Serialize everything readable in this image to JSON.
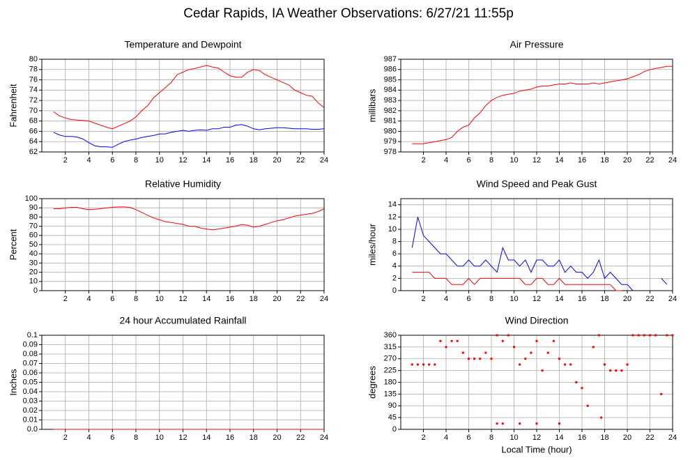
{
  "title": "Cedar Rapids, IA Weather Observations: 6/27/21 11:55p",
  "chart_data": [
    {
      "type": "line",
      "title": "Temperature and Dewpoint",
      "ylabel": "Fahrenheit",
      "x": [
        1,
        1.5,
        2,
        2.5,
        3,
        3.5,
        4,
        4.5,
        5,
        5.5,
        6,
        6.5,
        7,
        7.5,
        8,
        8.5,
        9,
        9.5,
        10,
        10.5,
        11,
        11.5,
        12,
        12.5,
        13,
        13.5,
        14,
        14.5,
        15,
        15.5,
        16,
        16.5,
        17,
        17.5,
        18,
        18.5,
        19,
        19.5,
        20,
        20.5,
        21,
        21.5,
        22,
        22.5,
        23,
        23.5,
        24
      ],
      "series": [
        {
          "color": "#ff0000",
          "values": [
            69.8,
            69,
            68.6,
            68.3,
            68.2,
            68.1,
            68,
            67.6,
            67.2,
            66.8,
            66.5,
            67,
            67.5,
            68,
            68.8,
            70,
            71,
            72.5,
            73.5,
            74.5,
            75.5,
            77,
            77.5,
            78,
            78.2,
            78.5,
            78.8,
            78.5,
            78.3,
            77.5,
            76.8,
            76.5,
            76.5,
            77.5,
            78,
            77.8,
            77,
            76.5,
            76,
            75.5,
            75,
            74,
            73.5,
            73,
            72.8,
            71.5,
            70.6
          ]
        },
        {
          "color": "#0000ff",
          "values": [
            65.8,
            65.3,
            65,
            65,
            64.9,
            64.5,
            63.8,
            63.2,
            63,
            63,
            62.9,
            63.5,
            64,
            64.3,
            64.5,
            64.8,
            65,
            65.2,
            65.5,
            65.5,
            65.8,
            66,
            66.2,
            66,
            66.2,
            66.3,
            66.2,
            66.5,
            66.5,
            66.8,
            66.8,
            67.2,
            67.3,
            67,
            66.5,
            66.3,
            66.5,
            66.6,
            66.7,
            66.7,
            66.6,
            66.5,
            66.5,
            66.5,
            66.4,
            66.4,
            66.5
          ]
        }
      ],
      "xlim": [
        0,
        24
      ],
      "xticks": [
        2,
        4,
        6,
        8,
        10,
        12,
        14,
        16,
        18,
        20,
        22,
        24
      ],
      "ylim": [
        62,
        80
      ],
      "yticks": [
        62,
        64,
        66,
        68,
        70,
        72,
        74,
        76,
        78,
        80
      ],
      "grid": true
    },
    {
      "type": "line",
      "title": "Air Pressure",
      "ylabel": "millibars",
      "x": [
        1,
        1.5,
        2,
        2.5,
        3,
        3.5,
        4,
        4.5,
        5,
        5.5,
        6,
        6.5,
        7,
        7.5,
        8,
        8.5,
        9,
        9.5,
        10,
        10.5,
        11,
        11.5,
        12,
        12.5,
        13,
        13.5,
        14,
        14.5,
        15,
        15.5,
        16,
        16.5,
        17,
        17.5,
        18,
        18.5,
        19,
        19.5,
        20,
        20.5,
        21,
        21.5,
        22,
        22.5,
        23,
        23.5,
        24
      ],
      "series": [
        {
          "color": "#ff0000",
          "values": [
            978.8,
            978.8,
            978.8,
            978.9,
            979,
            979.1,
            979.2,
            979.4,
            980,
            980.4,
            980.6,
            981.3,
            981.8,
            982.5,
            983,
            983.3,
            983.5,
            983.6,
            983.7,
            983.9,
            984,
            984.1,
            984.3,
            984.4,
            984.4,
            984.5,
            984.6,
            984.6,
            984.7,
            984.6,
            984.6,
            984.6,
            984.7,
            984.6,
            984.7,
            984.8,
            984.9,
            985,
            985.1,
            985.3,
            985.5,
            985.8,
            986,
            986.1,
            986.2,
            986.3,
            986.3
          ]
        }
      ],
      "xlim": [
        0,
        24
      ],
      "xticks": [
        2,
        4,
        6,
        8,
        10,
        12,
        14,
        16,
        18,
        20,
        22,
        24
      ],
      "ylim": [
        978,
        987
      ],
      "yticks": [
        978,
        979,
        980,
        981,
        982,
        983,
        984,
        985,
        986,
        987
      ],
      "grid": true
    },
    {
      "type": "line",
      "title": "Relative Humidity",
      "ylabel": "Percent",
      "x": [
        1,
        1.5,
        2,
        2.5,
        3,
        3.5,
        4,
        4.5,
        5,
        5.5,
        6,
        6.5,
        7,
        7.5,
        8,
        8.5,
        9,
        9.5,
        10,
        10.5,
        11,
        11.5,
        12,
        12.5,
        13,
        13.5,
        14,
        14.5,
        15,
        15.5,
        16,
        16.5,
        17,
        17.5,
        18,
        18.5,
        19,
        19.5,
        20,
        20.5,
        21,
        21.5,
        22,
        22.5,
        23,
        23.5,
        24
      ],
      "series": [
        {
          "color": "#ff0000",
          "values": [
            89,
            89,
            90,
            90.5,
            90.5,
            89,
            88,
            88.5,
            89,
            90,
            90.5,
            91,
            91,
            90.5,
            88,
            85,
            82,
            79,
            77,
            75,
            74,
            73,
            72,
            70,
            70,
            68,
            67,
            66,
            67,
            68,
            69,
            70,
            72,
            71,
            69,
            70,
            72,
            74,
            76,
            77,
            79,
            81,
            82,
            83,
            84,
            86,
            89
          ]
        }
      ],
      "xlim": [
        0,
        24
      ],
      "xticks": [
        2,
        4,
        6,
        8,
        10,
        12,
        14,
        16,
        18,
        20,
        22,
        24
      ],
      "ylim": [
        0,
        100
      ],
      "yticks": [
        0,
        10,
        20,
        30,
        40,
        50,
        60,
        70,
        80,
        90,
        100
      ],
      "grid": true
    },
    {
      "type": "line",
      "title": "Wind Speed and Peak Gust",
      "ylabel": "miles/hour",
      "x": [
        1,
        1.5,
        2,
        2.5,
        3,
        3.5,
        4,
        4.5,
        5,
        5.5,
        6,
        6.5,
        7,
        7.5,
        8,
        8.5,
        9,
        9.5,
        10,
        10.5,
        11,
        11.5,
        12,
        12.5,
        13,
        13.5,
        14,
        14.5,
        15,
        15.5,
        16,
        16.5,
        17,
        17.5,
        18,
        18.5,
        19,
        19.5,
        20,
        20.5,
        21,
        21.5,
        22,
        22.5,
        23,
        23.5,
        24
      ],
      "series": [
        {
          "color": "#0000ff",
          "values": [
            7,
            12,
            9,
            8,
            7,
            6,
            6,
            5,
            4,
            4,
            5,
            4,
            4,
            5,
            4,
            3,
            7,
            5,
            5,
            4,
            5,
            3,
            5,
            5,
            4,
            4,
            5,
            3,
            4,
            3,
            3,
            2,
            3,
            5,
            2,
            3,
            2,
            1,
            1,
            0,
            null,
            null,
            null,
            null,
            2,
            1,
            null
          ]
        },
        {
          "color": "#ff0000",
          "values": [
            3,
            3,
            3,
            3,
            2,
            2,
            2,
            1,
            1,
            1,
            2,
            1,
            2,
            2,
            2,
            2,
            2,
            2,
            2,
            2,
            1,
            1,
            2,
            2,
            1,
            1,
            2,
            1,
            1,
            1,
            1,
            1,
            1,
            1,
            1,
            1,
            0,
            0,
            null,
            null,
            null,
            null,
            null,
            null,
            null,
            null,
            null
          ]
        }
      ],
      "xlim": [
        0,
        24
      ],
      "xticks": [
        2,
        4,
        6,
        8,
        10,
        12,
        14,
        16,
        18,
        20,
        22,
        24
      ],
      "ylim": [
        0,
        15
      ],
      "yticks": [
        0,
        2,
        4,
        6,
        8,
        10,
        12,
        14
      ],
      "grid": true
    },
    {
      "type": "line",
      "title": "24 hour Accumulated Rainfall",
      "ylabel": "Inches",
      "x": [
        1,
        24
      ],
      "series": [
        {
          "color": "#ff0000",
          "values": [
            0,
            0
          ]
        }
      ],
      "xlim": [
        0,
        24
      ],
      "xticks": [
        2,
        4,
        6,
        8,
        10,
        12,
        14,
        16,
        18,
        20,
        22,
        24
      ],
      "ylim": [
        0,
        0.1
      ],
      "yticks": [
        {
          "value": 0,
          "label": "0.0"
        },
        0.01,
        0.02,
        0.03,
        0.04,
        0.05,
        0.06,
        0.07,
        0.08,
        0.09,
        0.1
      ],
      "grid": true
    },
    {
      "type": "scatter",
      "title": "Wind Direction",
      "ylabel": "degrees",
      "xlabel": "Local Time (hour)",
      "x": [
        1,
        1.5,
        2,
        2.5,
        3,
        3.5,
        4,
        4.5,
        5,
        5.5,
        6,
        6.5,
        7,
        7.5,
        8,
        8.5,
        9,
        9.5,
        10,
        10.5,
        11,
        11.5,
        12,
        12.5,
        13,
        13.5,
        14,
        14.5,
        15,
        15.5,
        16,
        16.5,
        17,
        17.5,
        18,
        18.5,
        19,
        19.5,
        20,
        20.5,
        21,
        21.5,
        22,
        22.5,
        23,
        23.5,
        24,
        8.5,
        9,
        10.5,
        12,
        14,
        17.7
      ],
      "series": [
        {
          "color": "#ff0000",
          "values": [
            248,
            248,
            248,
            248,
            248,
            338,
            315,
            338,
            338,
            293,
            270,
            270,
            270,
            293,
            270,
            360,
            338,
            360,
            315,
            248,
            270,
            293,
            338,
            225,
            293,
            338,
            270,
            248,
            248,
            180,
            158,
            90,
            315,
            360,
            248,
            225,
            225,
            225,
            248,
            360,
            360,
            360,
            360,
            360,
            135,
            360,
            360,
            22,
            22,
            22,
            22,
            22,
            45
          ]
        }
      ],
      "xlim": [
        0,
        24
      ],
      "xticks": [
        2,
        4,
        6,
        8,
        10,
        12,
        14,
        16,
        18,
        20,
        22,
        24
      ],
      "ylim": [
        0,
        360
      ],
      "yticks": [
        0,
        45,
        90,
        135,
        180,
        225,
        270,
        315,
        360
      ],
      "grid": true
    }
  ]
}
